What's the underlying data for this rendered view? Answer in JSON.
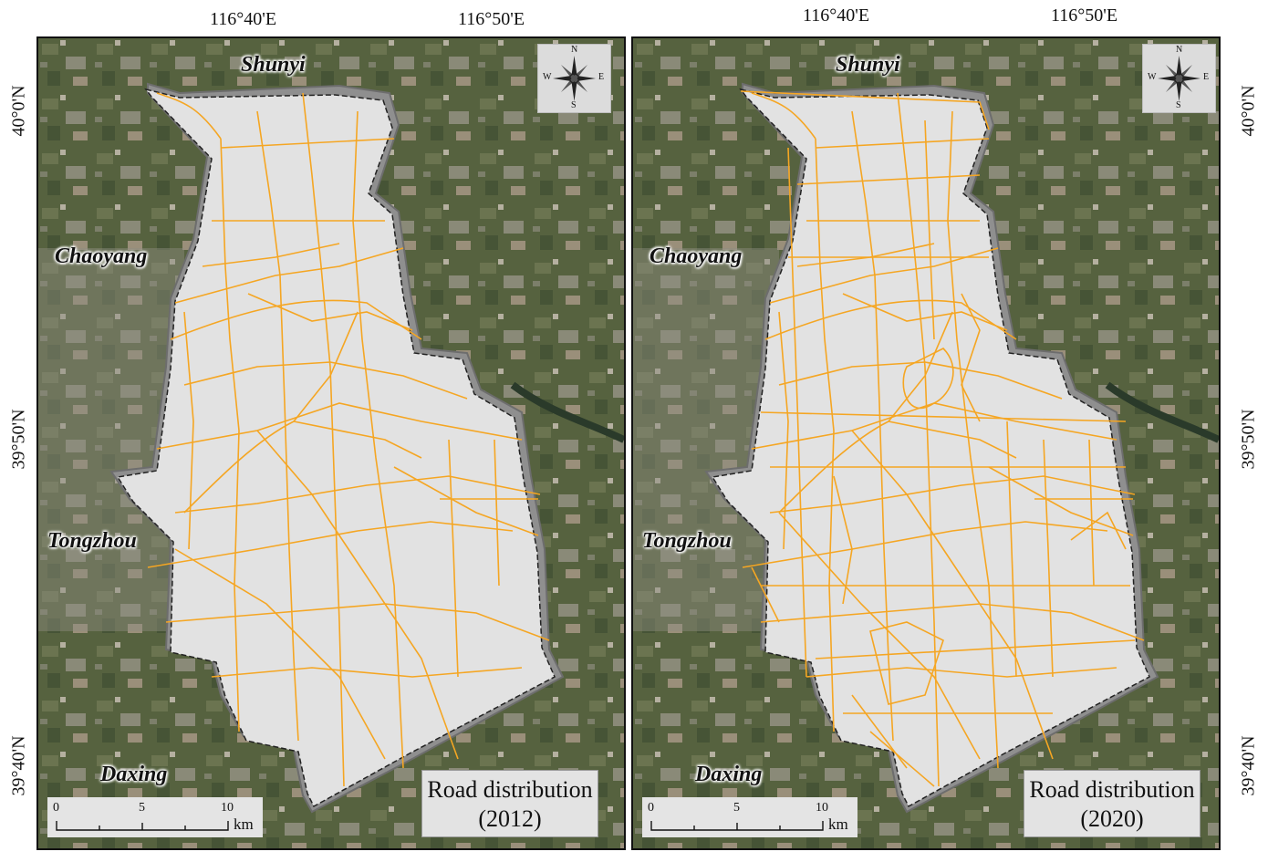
{
  "top_longitudes": [
    "116°40'E",
    "116°50'E"
  ],
  "latitudes": [
    "40°0'N",
    "39°50'N",
    "39°40'N"
  ],
  "districts": {
    "north": "Shunyi",
    "west_upper": "Chaoyang",
    "west_lower": "Tongzhou",
    "south": "Daxing"
  },
  "compass": {
    "n": "N",
    "s": "S",
    "e": "E",
    "w": "W"
  },
  "scale": {
    "ticks": [
      "0",
      "5",
      "10"
    ],
    "unit": "km"
  },
  "panels": [
    {
      "title_line1": "Road distribution",
      "title_line2": "(2012)"
    },
    {
      "title_line1": "Road distribution",
      "title_line2": "(2020)"
    }
  ],
  "colors": {
    "roads": "#f5a623",
    "study_area": "#e2e2e2",
    "buffer": "#8f8f8f"
  }
}
